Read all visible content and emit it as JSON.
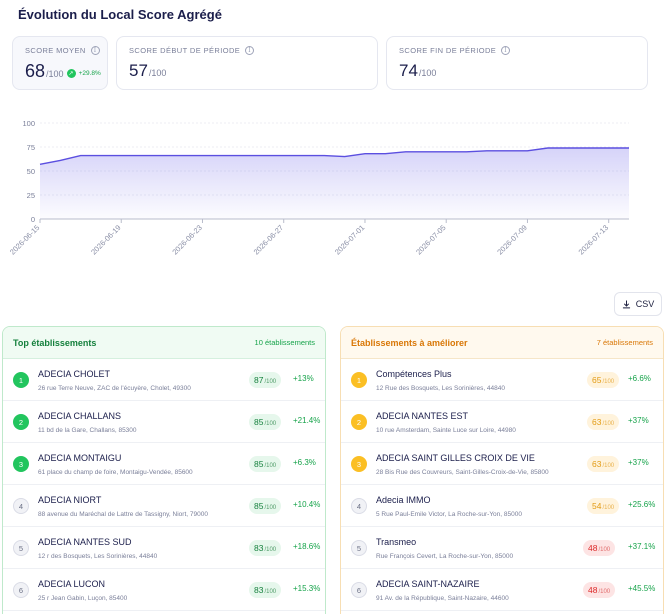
{
  "header": {
    "title": "Évolution du Local Score Agrégé"
  },
  "kpis": [
    {
      "label": "SCORE MOYEN",
      "value": "68",
      "denominator": "/100",
      "trend": "+29.8%"
    },
    {
      "label": "SCORE DÉBUT DE PÉRIODE",
      "value": "57",
      "denominator": "/100"
    },
    {
      "label": "SCORE FIN DE PÉRIODE",
      "value": "74",
      "denominator": "/100"
    }
  ],
  "chart_data": {
    "type": "area",
    "x": [
      "2026-06-15",
      "2026-06-16",
      "2026-06-17",
      "2026-06-18",
      "2026-06-19",
      "2026-06-20",
      "2026-06-21",
      "2026-06-22",
      "2026-06-23",
      "2026-06-24",
      "2026-06-25",
      "2026-06-26",
      "2026-06-27",
      "2026-06-28",
      "2026-06-29",
      "2026-06-30",
      "2026-07-01",
      "2026-07-02",
      "2026-07-03",
      "2026-07-04",
      "2026-07-05",
      "2026-07-06",
      "2026-07-07",
      "2026-07-08",
      "2026-07-09",
      "2026-07-10",
      "2026-07-11",
      "2026-07-12",
      "2026-07-13",
      "2026-07-14"
    ],
    "series": [
      {
        "values": [
          57,
          61,
          66,
          66,
          66,
          66,
          66,
          66,
          66,
          66,
          66,
          66,
          66,
          66,
          66,
          65,
          68,
          68,
          70,
          70,
          70,
          70,
          71,
          71,
          71,
          74,
          74,
          74,
          74,
          74
        ]
      }
    ],
    "xticks": [
      "2026-06-15",
      "2026-06-19",
      "2026-06-23",
      "2026-06-27",
      "2026-07-01",
      "2026-07-05",
      "2026-07-09",
      "2026-07-13"
    ],
    "yticks": [
      0,
      25,
      50,
      75,
      100
    ],
    "ylim": [
      0,
      100
    ],
    "color": "#5b4fe0",
    "grid": true,
    "title": "",
    "xlabel": "",
    "ylabel": ""
  },
  "toolbar": {
    "csv_label": "CSV",
    "csv_icon": "download-icon"
  },
  "top": {
    "title": "Top établissements",
    "count": "10 établissements",
    "items": [
      {
        "rank": "1",
        "name": "ADECIA CHOLET",
        "address": "26 rue Terre Neuve, ZAC de l'écuyère, Cholet, 49300",
        "score": "87",
        "den": "/100",
        "delta": "+13%"
      },
      {
        "rank": "2",
        "name": "ADECIA CHALLANS",
        "address": "11 bd de la Gare, Challans, 85300",
        "score": "85",
        "den": "/100",
        "delta": "+21.4%"
      },
      {
        "rank": "3",
        "name": "ADECIA MONTAIGU",
        "address": "61 place du champ de foire, Montaigu-Vendée, 85600",
        "score": "85",
        "den": "/100",
        "delta": "+6.3%"
      },
      {
        "rank": "4",
        "name": "ADECIA NIORT",
        "address": "88 avenue du Maréchal de Lattre de Tassigny, Niort, 79000",
        "score": "85",
        "den": "/100",
        "delta": "+10.4%"
      },
      {
        "rank": "5",
        "name": "ADECIA NANTES SUD",
        "address": "12 r des Bosquets, Les Sorinières, 44840",
        "score": "83",
        "den": "/100",
        "delta": "+18.6%"
      },
      {
        "rank": "6",
        "name": "ADECIA LUCON",
        "address": "25 r Jean Gabin, Luçon, 85400",
        "score": "83",
        "den": "/100",
        "delta": "+15.3%"
      }
    ]
  },
  "improve": {
    "title": "Établissements à améliorer",
    "count": "7 établissements",
    "items": [
      {
        "rank": "1",
        "name": "Compétences Plus",
        "address": "12 Rue des Bosquets, Les Sorinières, 44840",
        "score": "65",
        "den": "/100",
        "delta": "+6.6%",
        "level": "amber"
      },
      {
        "rank": "2",
        "name": "ADECIA NANTES EST",
        "address": "10 rue Amsterdam, Sainte Luce sur Loire, 44980",
        "score": "63",
        "den": "/100",
        "delta": "+37%",
        "level": "amber"
      },
      {
        "rank": "3",
        "name": "ADECIA SAINT GILLES CROIX DE VIE",
        "address": "28 Bis Rue des Couvreurs, Saint-Gilles-Croix-de-Vie, 85800",
        "score": "63",
        "den": "/100",
        "delta": "+37%",
        "level": "amber"
      },
      {
        "rank": "4",
        "name": "Adecia IMMO",
        "address": "5 Rue Paul-Emile Victor, La Roche-sur-Yon, 85000",
        "score": "54",
        "den": "/100",
        "delta": "+25.6%",
        "level": "amber"
      },
      {
        "rank": "5",
        "name": "Transmeo",
        "address": "Rue François Cevert, La Roche-sur-Yon, 85000",
        "score": "48",
        "den": "/100",
        "delta": "+37.1%",
        "level": "red"
      },
      {
        "rank": "6",
        "name": "ADECIA SAINT-NAZAIRE",
        "address": "91 Av. de la République, Saint-Nazaire, 44600",
        "score": "48",
        "den": "/100",
        "delta": "+45.5%",
        "level": "red"
      }
    ]
  }
}
